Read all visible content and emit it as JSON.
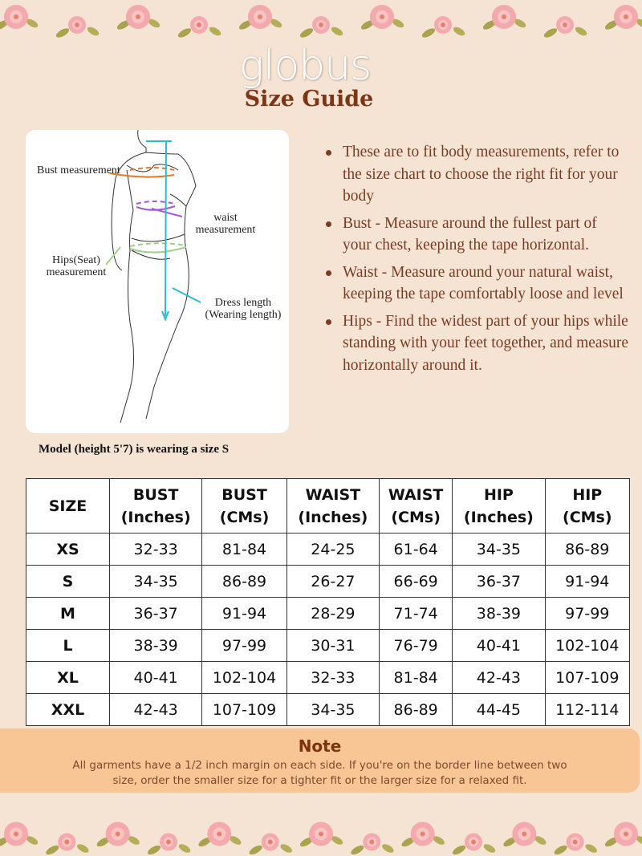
{
  "brand": "globus",
  "title": "Size Guide",
  "figure": {
    "labels": {
      "bust": "Bust measurement",
      "waist": "waist measurement",
      "hips": "Hips(Seat) measurement",
      "dress_length": "Dress length (Wearing length)"
    },
    "colors": {
      "bust": "#e5782a",
      "waist": "#a259d6",
      "hips": "#9fd08a",
      "dress_length": "#2bbad4"
    }
  },
  "caption": "Model (height 5'7) is wearing a size S",
  "bullets": [
    "These are to fit body measurements, refer to the size chart to choose the right fit for your body",
    "Bust - Measure around the fullest part of your chest, keeping the tape horizontal.",
    "Waist - Measure around your natural waist, keeping the tape comfortably loose and level",
    "Hips - Find the widest part of your hips while standing with your feet together, and measure horizontally around it."
  ],
  "table": {
    "headers": [
      [
        "SIZE",
        ""
      ],
      [
        "BUST",
        "(Inches)"
      ],
      [
        "BUST",
        "(CMs)"
      ],
      [
        "WAIST",
        "(Inches)"
      ],
      [
        "WAIST",
        "(CMs)"
      ],
      [
        "HIP",
        "(Inches)"
      ],
      [
        "HIP",
        "(CMs)"
      ]
    ],
    "rows": [
      [
        "XS",
        "32-33",
        "81-84",
        "24-25",
        "61-64",
        "34-35",
        "86-89"
      ],
      [
        "S",
        "34-35",
        "86-89",
        "26-27",
        "66-69",
        "36-37",
        "91-94"
      ],
      [
        "M",
        "36-37",
        "91-94",
        "28-29",
        "71-74",
        "38-39",
        "97-99"
      ],
      [
        "L",
        "38-39",
        "97-99",
        "30-31",
        "76-79",
        "40-41",
        "102-104"
      ],
      [
        "XL",
        "40-41",
        "102-104",
        "32-33",
        "81-84",
        "42-43",
        "107-109"
      ],
      [
        "XXL",
        "42-43",
        "107-109",
        "34-35",
        "86-89",
        "44-45",
        "112-114"
      ]
    ]
  },
  "note": {
    "title": "Note",
    "text": "All garments have a 1/2 inch margin on each side. If you're on the border line between two size, order the smaller size for a tighter fit or the larger size for a relaxed fit."
  }
}
